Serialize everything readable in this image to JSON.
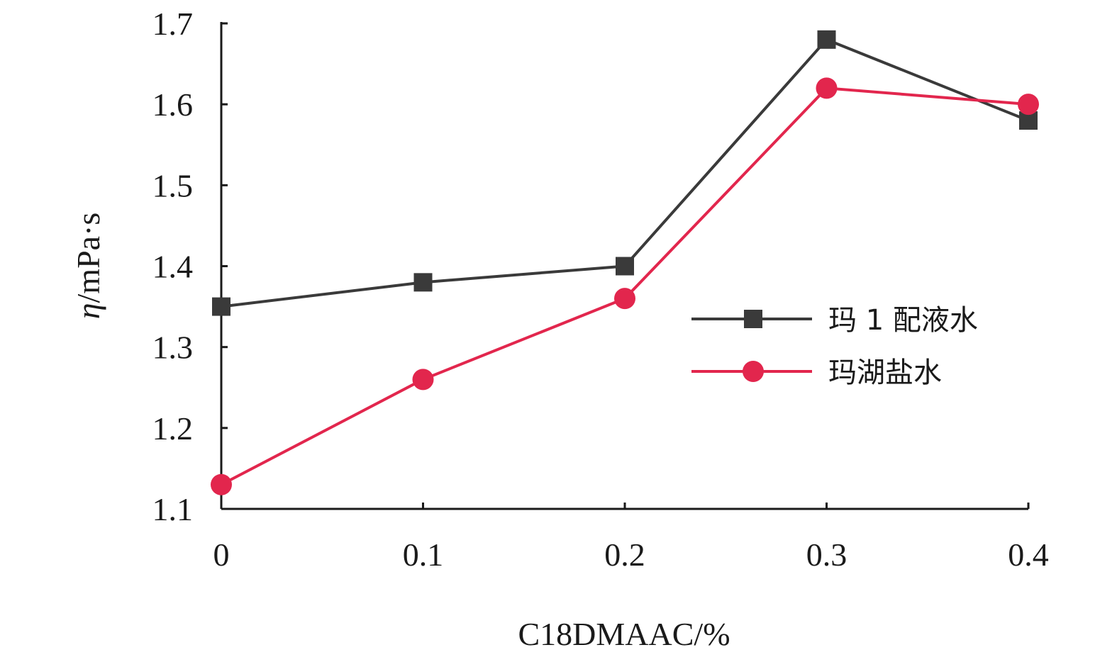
{
  "chart_data": {
    "type": "line",
    "x": [
      0,
      0.1,
      0.2,
      0.3,
      0.4
    ],
    "x_tick_labels": [
      "0",
      "0.1",
      "0.2",
      "0.3",
      "0.4"
    ],
    "y_tick_labels": [
      "1.1",
      "1.2",
      "1.3",
      "1.4",
      "1.5",
      "1.6",
      "1.7"
    ],
    "xlim": [
      0,
      0.4
    ],
    "ylim": [
      1.1,
      1.7
    ],
    "xlabel": "C18DMAAC/%",
    "ylabel_symbol": "η",
    "ylabel_unit": "/mPa·s",
    "grid": false,
    "legend_position": "right",
    "series": [
      {
        "name": "玛 1 配液水",
        "values": [
          1.35,
          1.38,
          1.4,
          1.68,
          1.58
        ],
        "color": "#3a3a3a",
        "marker": "square"
      },
      {
        "name": "玛湖盐水",
        "values": [
          1.13,
          1.26,
          1.36,
          1.62,
          1.6
        ],
        "color": "#e2264d",
        "marker": "circle"
      }
    ]
  }
}
